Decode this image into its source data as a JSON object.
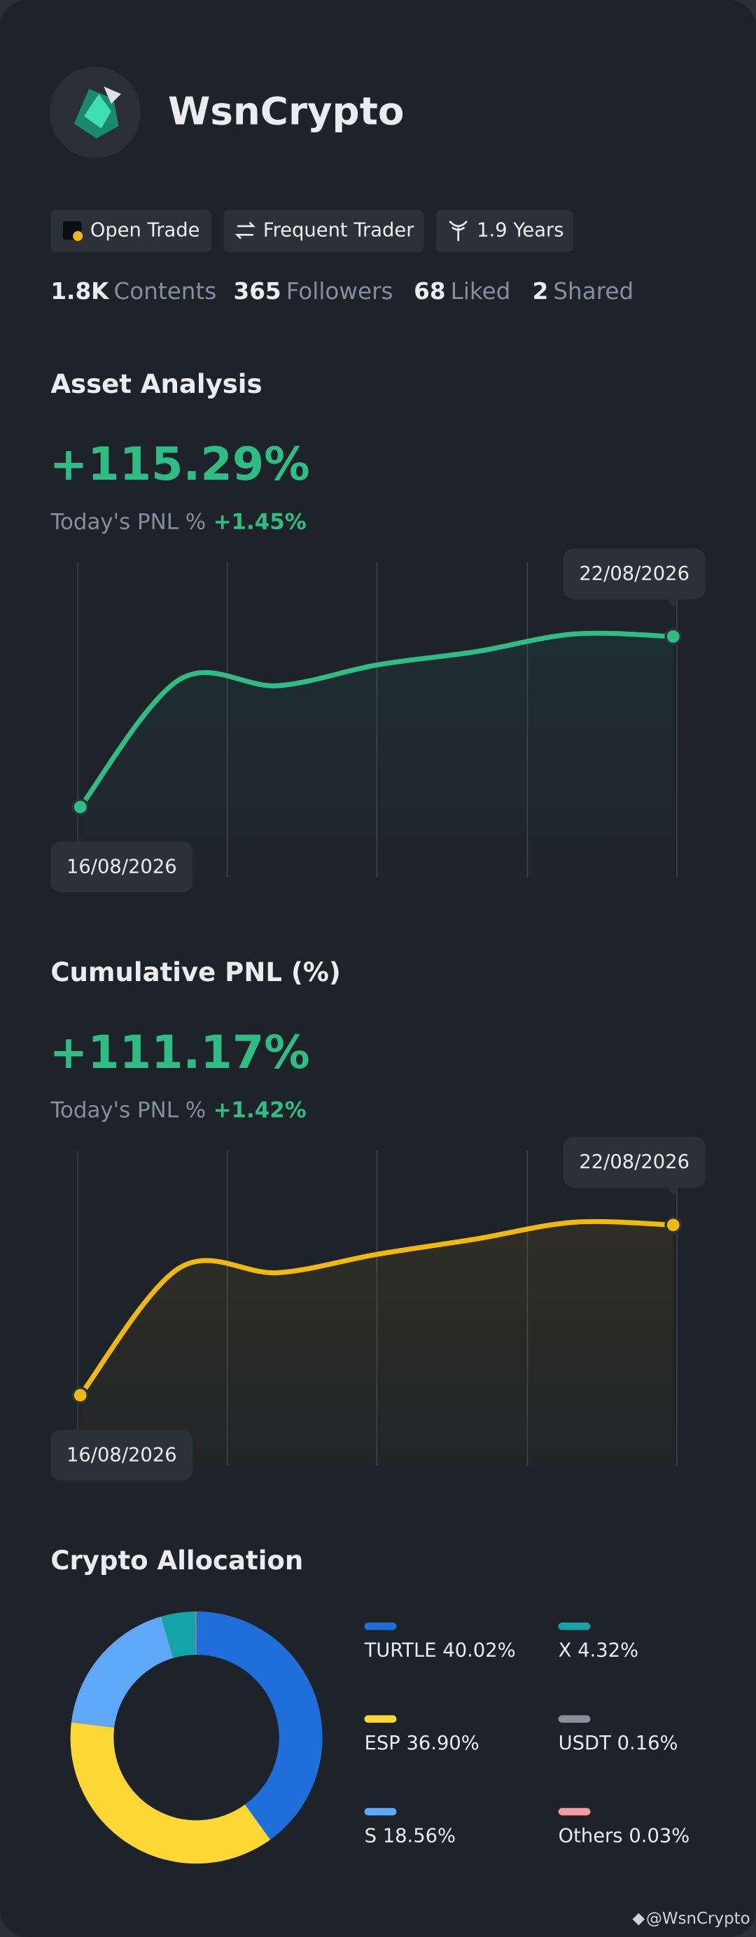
{
  "profile": {
    "name": "WsnCrypto",
    "badges": [
      "Open Trade",
      "Frequent Trader",
      "1.9 Years"
    ],
    "stats": [
      {
        "value": "1.8K",
        "label": "Contents"
      },
      {
        "value": 365,
        "label": "Followers"
      },
      {
        "value": 68,
        "label": "Liked"
      },
      {
        "value": 2,
        "label": "Shared"
      }
    ]
  },
  "chart_data": [
    {
      "type": "line",
      "title": "Asset Analysis",
      "headline": "+115.29%",
      "subtitle": "Today's PNL %",
      "subtitle_value": "+1.45%",
      "x": [
        "16/08/2026",
        null,
        null,
        null,
        null,
        null,
        "22/08/2026"
      ],
      "values": [
        0,
        86,
        82,
        96,
        105,
        117,
        115.29
      ],
      "color": "#2ebd85"
    },
    {
      "type": "line",
      "title": "Cumulative PNL (%)",
      "headline": "+111.17%",
      "subtitle": "Today's PNL %",
      "subtitle_value": "+1.42%",
      "x": [
        "16/08/2026",
        null,
        null,
        null,
        null,
        null,
        "22/08/2026"
      ],
      "values": [
        0,
        83,
        80,
        92,
        102,
        113,
        111.17
      ],
      "color": "#f0b90b"
    },
    {
      "type": "pie",
      "donut": true,
      "title": "Crypto Allocation",
      "categories": [
        "TURTLE",
        "ESP",
        "S",
        "X",
        "USDT",
        "Others"
      ],
      "values": [
        40.02,
        36.9,
        18.56,
        4.32,
        0.16,
        0.03
      ],
      "value_labels": [
        "40.02%",
        "36.90%",
        "18.56%",
        "4.32%",
        "0.16%",
        "0.03%"
      ],
      "colors": [
        "#1e6fd9",
        "#fdd835",
        "#5ea8f7",
        "#14a3a8",
        "#8a9099",
        "#f29ca3"
      ]
    }
  ],
  "footer": {
    "text": "@WsnCrypto"
  }
}
